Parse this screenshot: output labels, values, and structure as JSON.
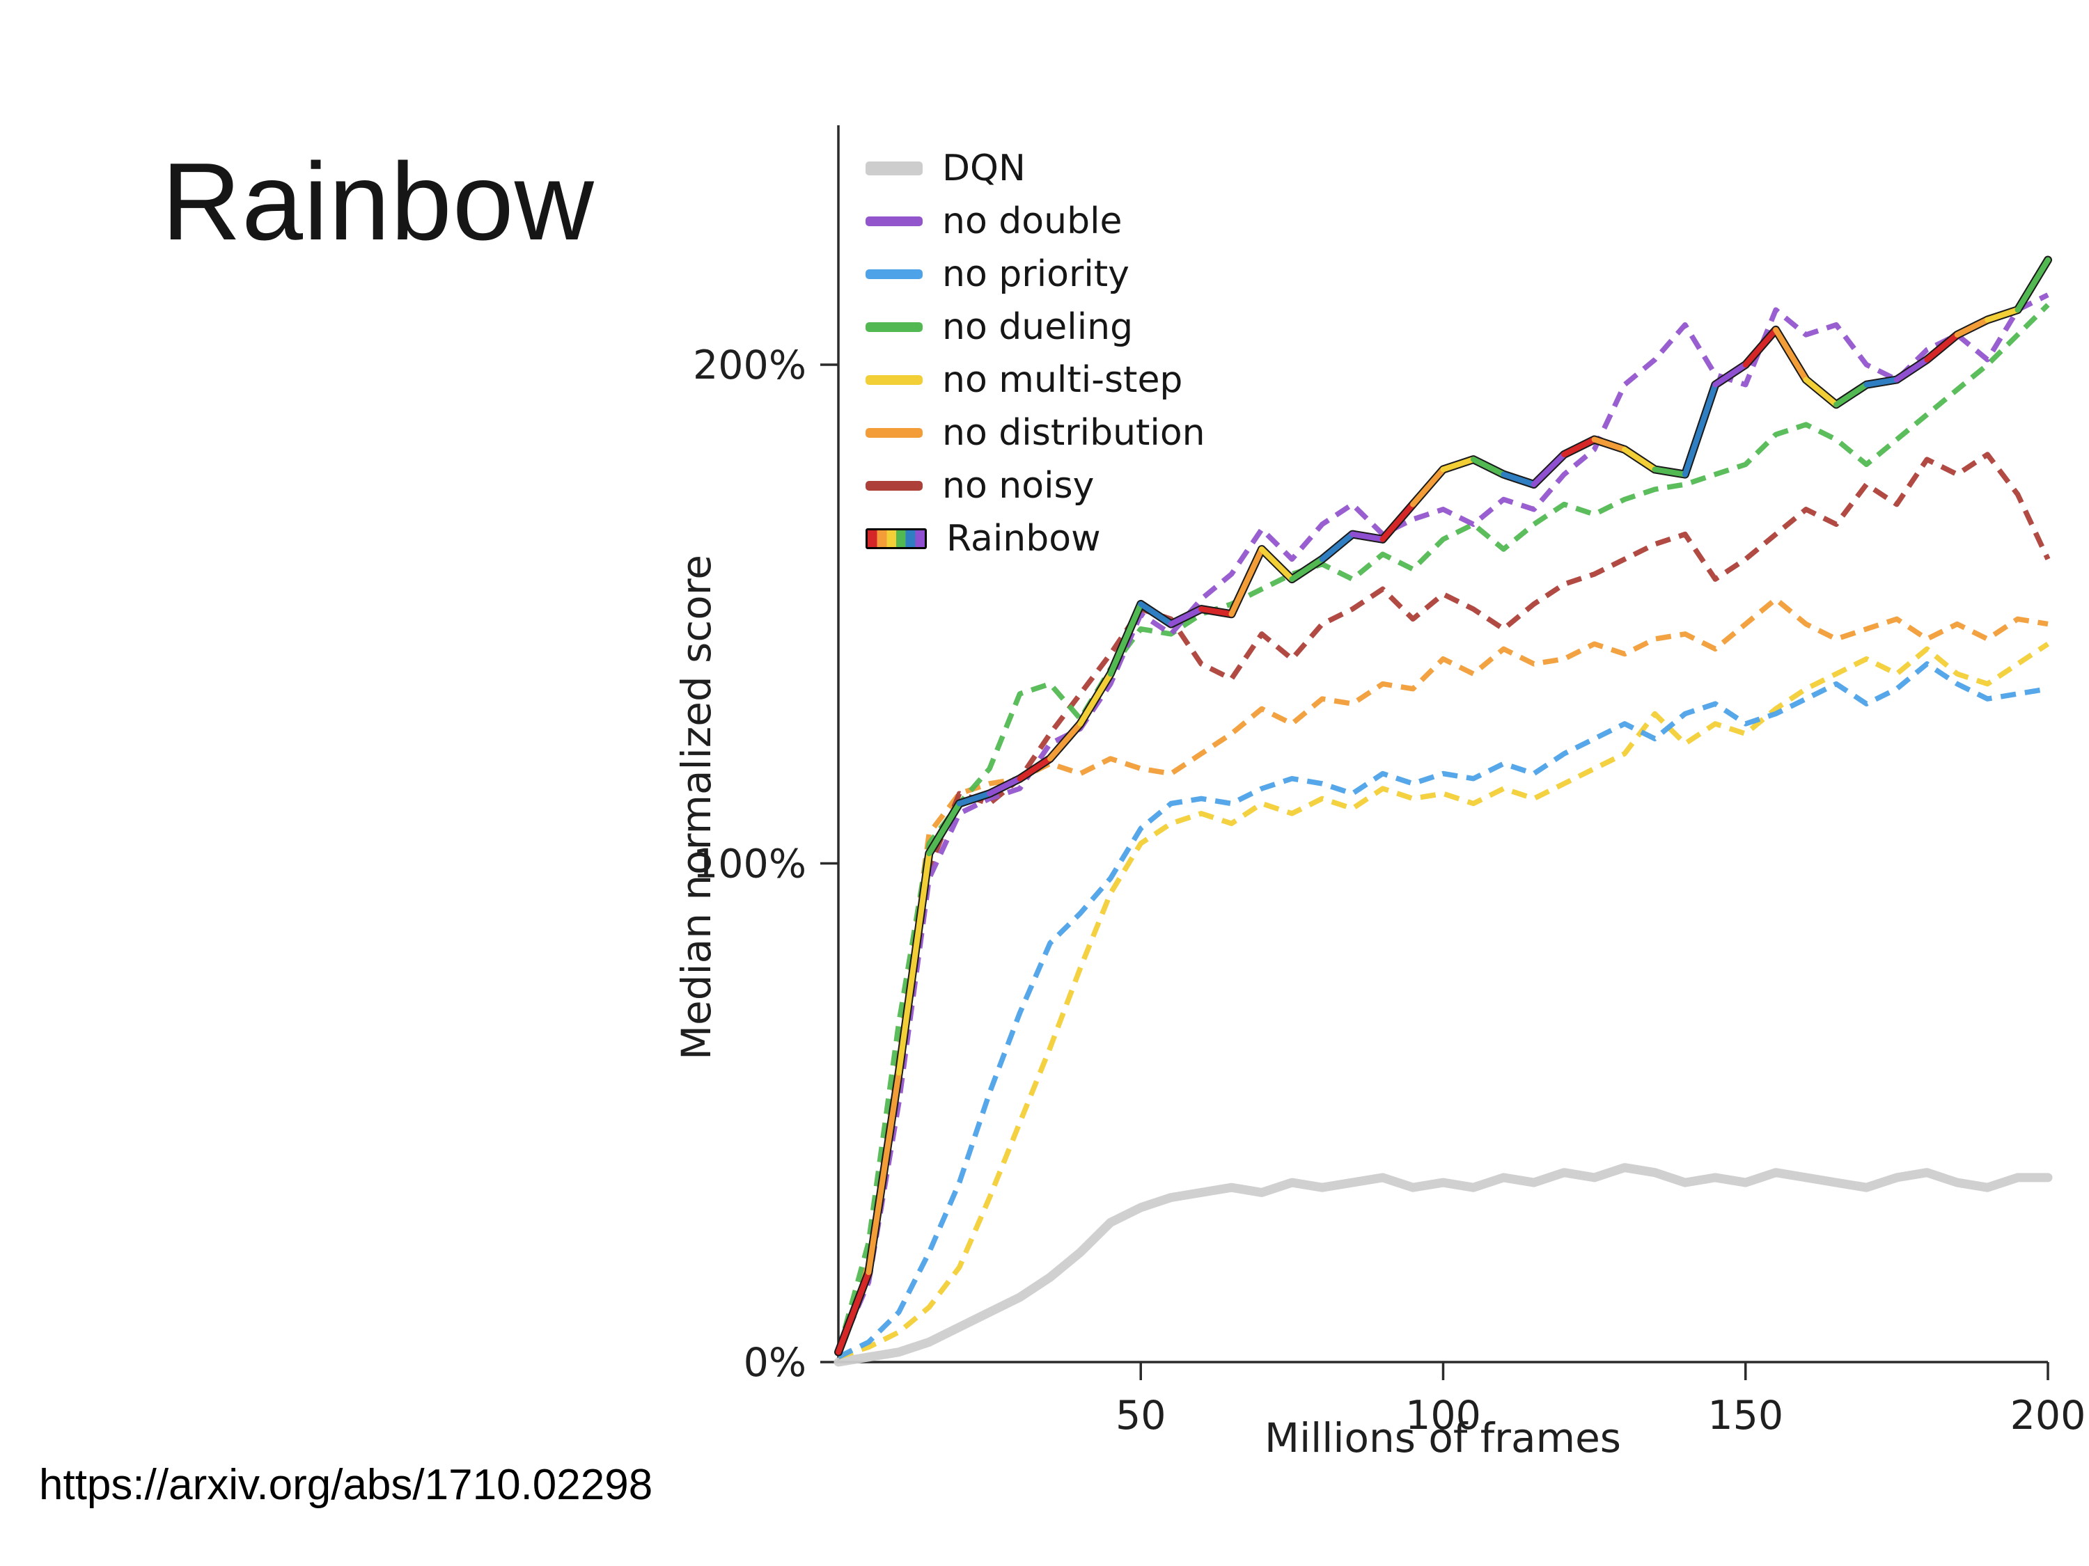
{
  "slide": {
    "title": "Rainbow",
    "source_url": "https://arxiv.org/abs/1710.02298"
  },
  "chart_data": {
    "type": "line",
    "title": "",
    "xlabel": "Millions of frames",
    "ylabel": "Median normalized score",
    "xlim": [
      0,
      200
    ],
    "ylim": [
      0,
      248
    ],
    "grid": false,
    "legend_position": "top-left",
    "axis_color": "#2b2b2b",
    "xticks": [
      {
        "v": 50,
        "label": "50"
      },
      {
        "v": 100,
        "label": "100"
      },
      {
        "v": 150,
        "label": "150"
      },
      {
        "v": 200,
        "label": "200"
      }
    ],
    "yticks": [
      {
        "v": 0,
        "label": "0%"
      },
      {
        "v": 100,
        "label": "100%"
      },
      {
        "v": 200,
        "label": "200%"
      }
    ],
    "x": [
      0,
      5,
      10,
      15,
      20,
      25,
      30,
      35,
      40,
      45,
      50,
      55,
      60,
      65,
      70,
      75,
      80,
      85,
      90,
      95,
      100,
      105,
      110,
      115,
      120,
      125,
      130,
      135,
      140,
      145,
      150,
      155,
      160,
      165,
      170,
      175,
      180,
      185,
      190,
      195,
      200
    ],
    "series": [
      {
        "name": "DQN",
        "color": "#cdcdcd",
        "style": "solid",
        "width": 13,
        "values": [
          0,
          1,
          2,
          4,
          7,
          10,
          13,
          17,
          22,
          28,
          31,
          33,
          34,
          35,
          34,
          36,
          35,
          36,
          37,
          35,
          36,
          35,
          37,
          36,
          38,
          37,
          39,
          38,
          36,
          37,
          36,
          38,
          37,
          36,
          35,
          37,
          38,
          36,
          35,
          37,
          37
        ]
      },
      {
        "name": "no double",
        "color": "#9355cc",
        "style": "dashed",
        "width": 7.5,
        "values": [
          2,
          16,
          52,
          97,
          110,
          113,
          115,
          124,
          127,
          136,
          150,
          146,
          153,
          158,
          167,
          161,
          168,
          172,
          166,
          169,
          171,
          168,
          173,
          171,
          178,
          183,
          196,
          201,
          208,
          198,
          196,
          211,
          206,
          208,
          200,
          197,
          203,
          206,
          201,
          211,
          214
        ]
      },
      {
        "name": "no priority",
        "color": "#4da2e8",
        "style": "dashed",
        "width": 7.5,
        "values": [
          1,
          4,
          10,
          22,
          36,
          54,
          70,
          84,
          90,
          97,
          107,
          112,
          113,
          112,
          115,
          117,
          116,
          114,
          118,
          116,
          118,
          117,
          120,
          118,
          122,
          125,
          128,
          125,
          130,
          132,
          128,
          130,
          133,
          136,
          132,
          135,
          140,
          136,
          133,
          134,
          135
        ]
      },
      {
        "name": "no dueling",
        "color": "#52b952",
        "style": "dashed",
        "width": 7.5,
        "values": [
          2,
          24,
          68,
          104,
          112,
          119,
          134,
          136,
          129,
          139,
          147,
          146,
          150,
          152,
          155,
          158,
          160,
          157,
          162,
          159,
          165,
          168,
          163,
          168,
          172,
          170,
          173,
          175,
          176,
          178,
          180,
          186,
          188,
          185,
          180,
          185,
          190,
          195,
          200,
          206,
          212
        ]
      },
      {
        "name": "no multi-step",
        "color": "#f2cf36",
        "style": "dashed",
        "width": 7.5,
        "values": [
          1,
          3,
          6,
          11,
          19,
          33,
          48,
          63,
          79,
          94,
          104,
          108,
          110,
          108,
          112,
          110,
          113,
          111,
          115,
          113,
          114,
          112,
          115,
          113,
          116,
          119,
          122,
          130,
          124,
          128,
          126,
          131,
          135,
          138,
          141,
          138,
          143,
          138,
          136,
          140,
          144
        ]
      },
      {
        "name": "no distribution",
        "color": "#f29d38",
        "style": "dashed",
        "width": 7.5,
        "values": [
          2,
          20,
          62,
          106,
          114,
          116,
          117,
          120,
          118,
          121,
          119,
          118,
          122,
          126,
          131,
          128,
          133,
          132,
          136,
          135,
          141,
          138,
          143,
          140,
          141,
          144,
          142,
          145,
          146,
          143,
          148,
          153,
          148,
          145,
          147,
          149,
          145,
          148,
          145,
          149,
          148
        ]
      },
      {
        "name": "no noisy",
        "color": "#ad4039",
        "style": "dashed",
        "width": 7.5,
        "values": [
          2,
          17,
          55,
          99,
          114,
          112,
          117,
          126,
          134,
          142,
          151,
          149,
          140,
          137,
          146,
          141,
          148,
          151,
          155,
          149,
          154,
          151,
          147,
          152,
          156,
          158,
          161,
          164,
          166,
          157,
          161,
          166,
          171,
          168,
          176,
          172,
          181,
          178,
          182,
          174,
          161
        ]
      },
      {
        "name": "Rainbow",
        "color": "rainbow",
        "style": "multicolor",
        "width": 8,
        "palette": [
          "#d62728",
          "#f29d38",
          "#f2cf36",
          "#52b952",
          "#2f7ec2",
          "#8f4fd1"
        ],
        "values": [
          2,
          18,
          58,
          102,
          112,
          114,
          117,
          121,
          128,
          138,
          152,
          148,
          151,
          150,
          163,
          157,
          161,
          166,
          165,
          172,
          179,
          181,
          178,
          176,
          182,
          185,
          183,
          179,
          178,
          196,
          200,
          207,
          197,
          192,
          196,
          197,
          201,
          206,
          209,
          211,
          221
        ]
      }
    ]
  }
}
